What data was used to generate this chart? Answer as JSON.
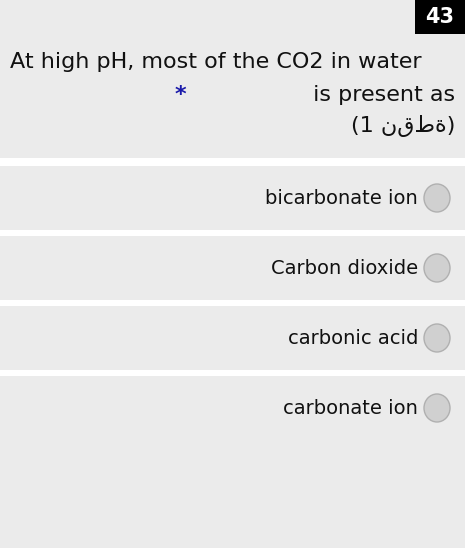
{
  "question_number": "43",
  "question_number_bg": "#000000",
  "question_number_color": "#ffffff",
  "question_line1": "At high pH, most of the CO2 in water",
  "question_line2": " is present as",
  "question_line2_star": "*",
  "question_line3": "(1 نقطة)",
  "star_color": "#1a1aaa",
  "options": [
    "bicarbonate ion",
    "Carbon dioxide",
    "carbonic acid",
    "carbonate ion"
  ],
  "bg_color": "#ebebeb",
  "option_bg_color": "#ebebeb",
  "option_sep_color": "#ffffff",
  "option_text_color": "#111111",
  "question_text_color": "#111111",
  "radio_fill_color": "#d0d0d0",
  "radio_edge_color": "#b0b0b0",
  "font_size_question": 16,
  "font_size_option": 14,
  "font_size_number": 15,
  "fig_width": 4.65,
  "fig_height": 5.48,
  "dpi": 100
}
